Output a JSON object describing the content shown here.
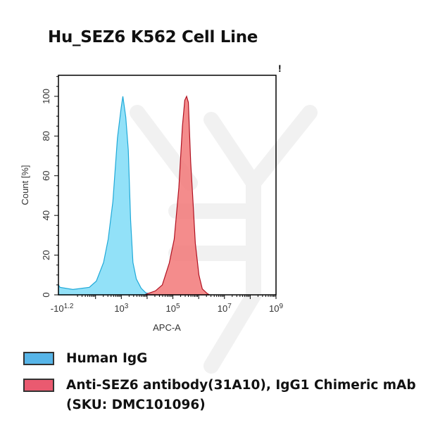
{
  "title": "Hu_SEZ6 K562 Cell Line",
  "marker": "!",
  "chart_data": {
    "type": "area",
    "title": "Hu_SEZ6 K562 Cell Line",
    "xlabel": "APC-A",
    "ylabel": "Count [%]",
    "x_scale": "biexponential (log10 decades)",
    "xlim": [
      0.56,
      9
    ],
    "ylim": [
      0,
      110.6
    ],
    "x_ticks": [
      {
        "value": 0.7,
        "base": "-10",
        "exp": "1.2"
      },
      {
        "value": 3,
        "base": "10",
        "exp": "3"
      },
      {
        "value": 5,
        "base": "10",
        "exp": "5"
      },
      {
        "value": 7,
        "base": "10",
        "exp": "7"
      },
      {
        "value": 9,
        "base": "10",
        "exp": "9"
      }
    ],
    "y_ticks": [
      0,
      20,
      40,
      60,
      80,
      100
    ],
    "grid": false,
    "series": [
      {
        "name": "Human IgG",
        "fill": "#7fdcf7",
        "stroke": "#1fa9d8",
        "x": [
          0.56,
          0.62,
          1.12,
          1.76,
          2.03,
          2.31,
          2.49,
          2.67,
          2.85,
          2.99,
          3.06,
          3.17,
          3.27,
          3.36,
          3.45,
          3.58,
          3.77,
          3.95,
          4.32
        ],
        "y": [
          5,
          3.8,
          2.7,
          3.8,
          6.9,
          16.3,
          28.1,
          47,
          79,
          94,
          100,
          89.6,
          73,
          37.6,
          16.3,
          8,
          3.3,
          1,
          0
        ]
      },
      {
        "name": "Anti-SEZ6 antibody(31A10), IgG1 Chimeric mAb (SKU: DMC101096)",
        "fill": "#f27878",
        "stroke": "#b01020",
        "x": [
          3.95,
          4.32,
          4.59,
          4.86,
          5.05,
          5.23,
          5.37,
          5.46,
          5.53,
          5.6,
          5.69,
          5.78,
          5.87,
          6.01,
          6.14,
          6.33,
          6.42
        ],
        "y": [
          0.3,
          2,
          5,
          16,
          28,
          54,
          85,
          98,
          100,
          97,
          67,
          47,
          26,
          10,
          3,
          0.7,
          0
        ]
      }
    ]
  },
  "legend": [
    {
      "label": "Human IgG",
      "color": "#57b5e8"
    },
    {
      "label": "Anti-SEZ6 antibody(31A10), IgG1 Chimeric mAb (SKU: DMC101096)",
      "color": "#ea5a70"
    }
  ]
}
